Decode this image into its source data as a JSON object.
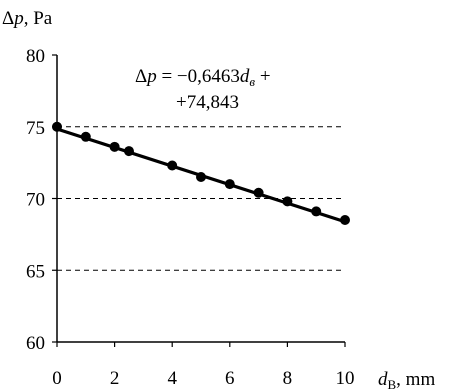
{
  "chart_data": {
    "type": "scatter",
    "title": "",
    "ylabel": {
      "symbol": "Δ",
      "var": "p",
      "unit": ", Pa"
    },
    "xlabel": {
      "var": "d",
      "sub": "В",
      "unit": ", mm"
    },
    "xlim": [
      0,
      10
    ],
    "ylim": [
      60,
      80
    ],
    "xticks": [
      0,
      2,
      4,
      6,
      8,
      10
    ],
    "yticks": [
      60,
      65,
      70,
      75,
      80
    ],
    "dashed_gridlines_y": [
      65,
      70,
      75
    ],
    "series": [
      {
        "points": [
          {
            "x": 0,
            "y": 75.0
          },
          {
            "x": 1,
            "y": 74.3
          },
          {
            "x": 2,
            "y": 73.6
          },
          {
            "x": 2.5,
            "y": 73.3
          },
          {
            "x": 4,
            "y": 72.3
          },
          {
            "x": 5,
            "y": 71.5
          },
          {
            "x": 6,
            "y": 71.0
          },
          {
            "x": 7,
            "y": 70.4
          },
          {
            "x": 8,
            "y": 69.8
          },
          {
            "x": 9,
            "y": 69.1
          },
          {
            "x": 10,
            "y": 68.5
          }
        ]
      }
    ],
    "trendline": {
      "slope": -0.6463,
      "intercept": 74.843
    },
    "equation": {
      "line1_prefix": "Δ",
      "line1_var": "p",
      "line1_mid": " = −0,6463",
      "line1_var2": "d",
      "line1_sub": "в",
      "line1_suffix": " +",
      "line2": "+74,843"
    }
  }
}
